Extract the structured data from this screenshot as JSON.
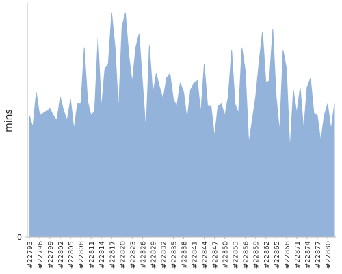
{
  "chart_data": {
    "type": "area",
    "y_label": "mins",
    "categories": [
      "#22793",
      null,
      null,
      "#22796",
      null,
      null,
      "#22799",
      null,
      null,
      "#22802",
      null,
      null,
      "#22805",
      null,
      null,
      "#22808",
      null,
      null,
      "#22811",
      null,
      null,
      "#22814",
      null,
      null,
      "#22817",
      null,
      null,
      "#22820",
      null,
      null,
      "#22823",
      null,
      null,
      "#22826",
      null,
      null,
      "#22829",
      null,
      null,
      "#22832",
      null,
      null,
      "#22835",
      null,
      null,
      "#22838",
      null,
      null,
      "#22841",
      null,
      null,
      "#22844",
      null,
      null,
      "#22847",
      null,
      null,
      "#22850",
      null,
      null,
      "#22853",
      null,
      null,
      "#22856",
      null,
      null,
      "#22859",
      null,
      null,
      "#22862",
      null,
      null,
      "#22865",
      null,
      null,
      "#22868",
      null,
      null,
      "#22871",
      null,
      null,
      "#22874",
      null,
      null,
      "#22877",
      null,
      null,
      "#22880",
      null,
      null
    ],
    "values": [
      52,
      47,
      62,
      52,
      53,
      54,
      55,
      52,
      50,
      60,
      54,
      50,
      59,
      46,
      57,
      57,
      81,
      58,
      52,
      54,
      85,
      55,
      72,
      74,
      96,
      81,
      54,
      90,
      96,
      78,
      66,
      81,
      87,
      66,
      45,
      82,
      61,
      70,
      64,
      59,
      68,
      70,
      59,
      56,
      66,
      62,
      50,
      63,
      66,
      67,
      53,
      74,
      56,
      56,
      43,
      56,
      57,
      52,
      60,
      80,
      57,
      53,
      81,
      71,
      40,
      50,
      60,
      75,
      88,
      66,
      67,
      89,
      60,
      45,
      80,
      72,
      37,
      63,
      53,
      64,
      46,
      64,
      68,
      53,
      52,
      41,
      52,
      57,
      46,
      57
    ],
    "color": "#94b3db",
    "ylim": [
      0,
      100
    ],
    "yticks": [
      0
    ]
  }
}
